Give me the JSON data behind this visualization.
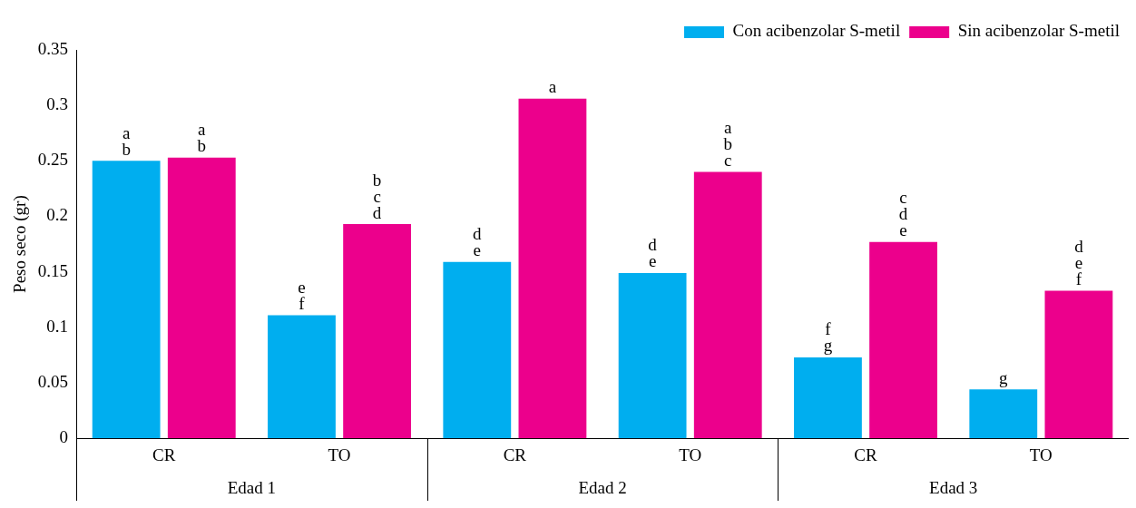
{
  "chart_data": {
    "type": "bar",
    "ylabel": "Peso seco (gr)",
    "categories": [
      "CR",
      "TO",
      "CR",
      "TO",
      "CR",
      "TO"
    ],
    "series": [
      {
        "name": "Con acibenzolar S-metil",
        "color": "#00aeef",
        "values": [
          0.25,
          0.111,
          0.159,
          0.149,
          0.073,
          0.044
        ],
        "value_labels": [
          "ab",
          "ef",
          "de",
          "de",
          "fg",
          "g"
        ]
      },
      {
        "name": "Sin acibenzolar S-metil",
        "color": "#ec008c",
        "values": [
          0.253,
          0.193,
          0.306,
          0.24,
          0.177,
          0.133
        ],
        "value_labels": [
          "ab",
          "bcd",
          "a",
          "abc",
          "cde",
          "def"
        ]
      }
    ],
    "annotations": [
      "Edad 1",
      "Edad 2",
      "Edad 3"
    ],
    "ylim": [
      0,
      0.35
    ],
    "yticks": [
      0,
      0.05,
      0.1,
      0.15,
      0.2,
      0.25,
      0.3,
      0.35
    ],
    "grid": false,
    "legend": "top right"
  }
}
